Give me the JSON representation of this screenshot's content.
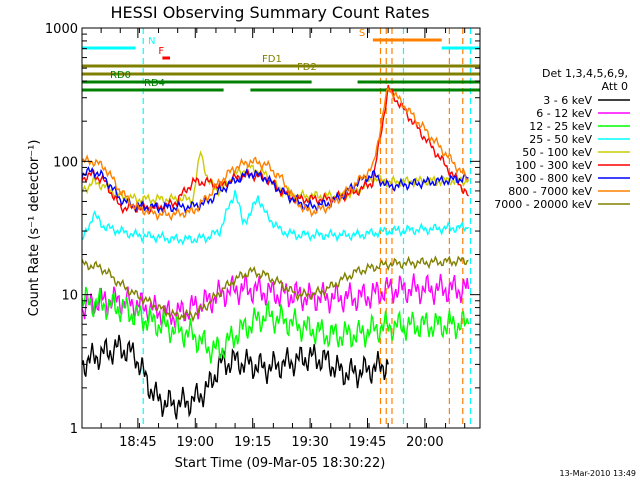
{
  "chart_data": {
    "type": "line",
    "title": "HESSI Observing Summary Count Rates",
    "xlabel": "Start Time (09-Mar-05 18:30:22)",
    "ylabel": "Count Rate (s⁻¹ detector⁻¹)",
    "yscale": "log",
    "ylim": [
      1,
      1000
    ],
    "xlim_minutes": [
      0,
      104
    ],
    "x_ticks": [
      {
        "label": "18:45",
        "t": 14.6
      },
      {
        "label": "19:00",
        "t": 29.6
      },
      {
        "label": "19:15",
        "t": 44.6
      },
      {
        "label": "19:30",
        "t": 59.6
      },
      {
        "label": "19:45",
        "t": 74.6
      },
      {
        "label": "20:00",
        "t": 89.6
      }
    ],
    "y_ticks": [
      {
        "label": "1",
        "v": 1
      },
      {
        "label": "10",
        "v": 10
      },
      {
        "label": "100",
        "v": 100
      },
      {
        "label": "1000",
        "v": 1000
      }
    ],
    "legend": {
      "placement": "right",
      "header": [
        "Det 1,3,4,5,6,9,",
        "Att 0"
      ]
    },
    "series": [
      {
        "name": "3 - 6 keV",
        "color": "#000000",
        "data": [
          [
            0,
            3
          ],
          [
            5,
            3.6
          ],
          [
            10,
            4
          ],
          [
            14,
            3.5
          ],
          [
            17,
            2.2
          ],
          [
            20,
            1.6
          ],
          [
            24,
            1.5
          ],
          [
            29,
            1.6
          ],
          [
            33,
            2
          ],
          [
            36,
            3
          ],
          [
            40,
            3.2
          ],
          [
            44,
            3
          ],
          [
            48,
            2.8
          ],
          [
            52,
            3
          ],
          [
            56,
            3.2
          ],
          [
            59,
            3.4
          ],
          [
            60,
            3.4
          ],
          [
            64,
            3.2
          ],
          [
            68,
            2.6
          ],
          [
            72,
            2.6
          ],
          [
            76,
            2.8
          ],
          [
            80,
            3
          ]
        ]
      },
      {
        "name": "6 - 12 keV",
        "color": "#ff00ff",
        "data": [
          [
            0,
            8
          ],
          [
            5,
            9
          ],
          [
            10,
            9
          ],
          [
            14,
            8.5
          ],
          [
            20,
            7.5
          ],
          [
            24,
            7
          ],
          [
            29,
            8
          ],
          [
            33,
            9
          ],
          [
            36,
            10
          ],
          [
            40,
            11
          ],
          [
            44,
            11
          ],
          [
            48,
            10.5
          ],
          [
            52,
            10
          ],
          [
            56,
            10
          ],
          [
            59,
            9.5
          ],
          [
            60,
            9.5
          ],
          [
            64,
            9.5
          ],
          [
            68,
            9.5
          ],
          [
            72,
            9.5
          ],
          [
            76,
            10
          ],
          [
            80,
            11
          ],
          [
            101,
            11
          ]
        ]
      },
      {
        "name": "12 - 25 keV",
        "color": "#00ff00",
        "data": [
          [
            0,
            9
          ],
          [
            5,
            8.5
          ],
          [
            10,
            8
          ],
          [
            14,
            7
          ],
          [
            20,
            6
          ],
          [
            24,
            5.5
          ],
          [
            29,
            5
          ],
          [
            33,
            4
          ],
          [
            36,
            3.8
          ],
          [
            40,
            5
          ],
          [
            44,
            6
          ],
          [
            48,
            7
          ],
          [
            52,
            6.5
          ],
          [
            56,
            6
          ],
          [
            59,
            5.5
          ],
          [
            60,
            5.5
          ],
          [
            64,
            5
          ],
          [
            68,
            5
          ],
          [
            72,
            5
          ],
          [
            76,
            5.5
          ],
          [
            80,
            5.8
          ],
          [
            101,
            6
          ]
        ]
      },
      {
        "name": "25 - 50 keV",
        "color": "#00ffff",
        "data": [
          [
            0,
            25
          ],
          [
            3,
            40
          ],
          [
            6,
            32
          ],
          [
            10,
            30
          ],
          [
            14,
            28
          ],
          [
            20,
            27
          ],
          [
            24,
            26
          ],
          [
            29,
            26
          ],
          [
            33,
            27
          ],
          [
            36,
            30
          ],
          [
            40,
            60
          ],
          [
            42,
            35
          ],
          [
            44,
            40
          ],
          [
            46,
            55
          ],
          [
            48,
            40
          ],
          [
            52,
            30
          ],
          [
            56,
            28
          ],
          [
            59,
            28
          ],
          [
            60,
            28
          ],
          [
            64,
            28
          ],
          [
            68,
            28
          ],
          [
            72,
            28
          ],
          [
            76,
            29
          ],
          [
            80,
            30
          ],
          [
            101,
            32
          ]
        ]
      },
      {
        "name": "50 - 100 keV",
        "color": "#cccc00",
        "data": [
          [
            0,
            60
          ],
          [
            3,
            70
          ],
          [
            6,
            65
          ],
          [
            10,
            55
          ],
          [
            14,
            52
          ],
          [
            20,
            52
          ],
          [
            24,
            52
          ],
          [
            29,
            52
          ],
          [
            31,
            120
          ],
          [
            33,
            70
          ],
          [
            36,
            60
          ],
          [
            40,
            80
          ],
          [
            44,
            90
          ],
          [
            48,
            80
          ],
          [
            52,
            60
          ],
          [
            56,
            55
          ],
          [
            59,
            55
          ],
          [
            60,
            55
          ],
          [
            64,
            55
          ],
          [
            68,
            55
          ],
          [
            72,
            60
          ],
          [
            76,
            75
          ],
          [
            80,
            70
          ],
          [
            101,
            72
          ]
        ]
      },
      {
        "name": "100 - 300 keV",
        "color": "#ff0000",
        "data": [
          [
            0,
            75
          ],
          [
            3,
            80
          ],
          [
            6,
            70
          ],
          [
            10,
            45
          ],
          [
            14,
            45
          ],
          [
            20,
            45
          ],
          [
            24,
            48
          ],
          [
            29,
            70
          ],
          [
            33,
            70
          ],
          [
            36,
            65
          ],
          [
            40,
            75
          ],
          [
            44,
            80
          ],
          [
            48,
            75
          ],
          [
            52,
            60
          ],
          [
            56,
            52
          ],
          [
            59,
            52
          ],
          [
            60,
            52
          ],
          [
            64,
            52
          ],
          [
            68,
            55
          ],
          [
            72,
            60
          ],
          [
            76,
            70
          ],
          [
            80,
            350
          ],
          [
            101,
            55
          ]
        ]
      },
      {
        "name": "300 - 800 keV",
        "color": "#0000ff",
        "data": [
          [
            0,
            80
          ],
          [
            3,
            85
          ],
          [
            6,
            75
          ],
          [
            10,
            52
          ],
          [
            14,
            46
          ],
          [
            20,
            45
          ],
          [
            24,
            45
          ],
          [
            29,
            46
          ],
          [
            33,
            50
          ],
          [
            36,
            60
          ],
          [
            40,
            72
          ],
          [
            44,
            82
          ],
          [
            48,
            75
          ],
          [
            52,
            60
          ],
          [
            56,
            50
          ],
          [
            59,
            46
          ],
          [
            60,
            46
          ],
          [
            64,
            48
          ],
          [
            68,
            55
          ],
          [
            72,
            70
          ],
          [
            76,
            80
          ],
          [
            80,
            65
          ],
          [
            101,
            75
          ]
        ]
      },
      {
        "name": "800 - 7000 keV",
        "color": "#ff8000",
        "data": [
          [
            0,
            100
          ],
          [
            3,
            100
          ],
          [
            6,
            90
          ],
          [
            10,
            60
          ],
          [
            14,
            45
          ],
          [
            20,
            40
          ],
          [
            24,
            40
          ],
          [
            29,
            42
          ],
          [
            33,
            55
          ],
          [
            36,
            70
          ],
          [
            40,
            90
          ],
          [
            44,
            100
          ],
          [
            48,
            95
          ],
          [
            52,
            75
          ],
          [
            56,
            50
          ],
          [
            59,
            42
          ],
          [
            60,
            42
          ],
          [
            64,
            45
          ],
          [
            68,
            55
          ],
          [
            72,
            70
          ],
          [
            76,
            90
          ],
          [
            80,
            360
          ],
          [
            101,
            72
          ]
        ]
      },
      {
        "name": "7000 - 20000 keV",
        "color": "#808000",
        "data": [
          [
            0,
            17
          ],
          [
            5,
            16
          ],
          [
            10,
            12
          ],
          [
            14,
            10
          ],
          [
            20,
            8
          ],
          [
            24,
            7
          ],
          [
            29,
            7
          ],
          [
            33,
            8.5
          ],
          [
            36,
            10.5
          ],
          [
            40,
            13
          ],
          [
            44,
            15
          ],
          [
            48,
            14
          ],
          [
            52,
            12
          ],
          [
            56,
            10
          ],
          [
            59,
            10
          ],
          [
            60,
            10
          ],
          [
            64,
            11
          ],
          [
            68,
            13
          ],
          [
            72,
            15
          ],
          [
            76,
            16
          ],
          [
            80,
            17
          ],
          [
            101,
            18
          ]
        ]
      }
    ],
    "flag_bars": [
      {
        "label": "N",
        "color": "#00ffff",
        "segments": [
          [
            0,
            14
          ],
          [
            94,
            104
          ]
        ]
      },
      {
        "label": "F",
        "color": "#ff0000",
        "segments": [
          [
            21,
            23
          ]
        ]
      },
      {
        "label": "S",
        "color": "#ff8000",
        "segments": [
          [
            76,
            94
          ]
        ]
      },
      {
        "label": "FD1",
        "color": "#808000",
        "segments": [
          [
            0,
            104
          ]
        ]
      },
      {
        "label": "FD2",
        "color": "#808000",
        "segments": [
          [
            0,
            104
          ]
        ]
      },
      {
        "label": "RD0",
        "color": "#008000",
        "segments": [
          [
            0,
            60
          ],
          [
            72,
            104
          ]
        ]
      },
      {
        "label": "RD4",
        "color": "#008000",
        "segments": [
          [
            0,
            37
          ],
          [
            44,
            104
          ]
        ]
      }
    ],
    "vlines": [
      {
        "t": 16,
        "color": "#00ffff",
        "dash": true
      },
      {
        "t": 78,
        "color": "#ff8000",
        "dash": true
      },
      {
        "t": 79.5,
        "color": "#ff8000",
        "dash": true
      },
      {
        "t": 81,
        "color": "#ff8000",
        "dash": true
      },
      {
        "t": 84,
        "color": "#00ffff",
        "dash": true
      },
      {
        "t": 96,
        "color": "#ff8000",
        "dash": true
      },
      {
        "t": 99.5,
        "color": "#ff8000",
        "dash": true
      },
      {
        "t": 101.5,
        "color": "#00ffff",
        "dash": true
      }
    ]
  },
  "timestamp": "13-Mar-2010 13:49"
}
